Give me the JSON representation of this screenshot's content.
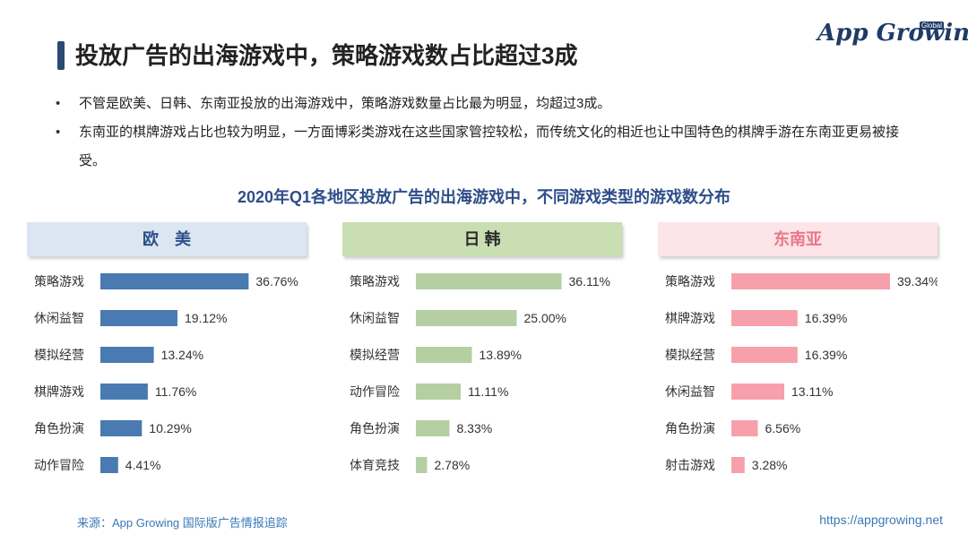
{
  "page": {
    "title": "投放广告的出海游戏中，策略游戏数占比超过3成",
    "logo_text": "App Growing",
    "logo_badge": "Global",
    "bullets": [
      "不管是欧美、日韩、东南亚投放的出海游戏中，策略游戏数量占比最为明显，均超过3成。",
      "东南亚的棋牌游戏占比也较为明显，一方面博彩类游戏在这些国家管控较松，而传统文化的相近也让中国特色的棋牌手游在东南亚更易被接受。"
    ],
    "chart_title": "2020年Q1各地区投放广告的出海游戏中，不同游戏类型的游戏数分布",
    "source": "来源：App Growing 国际版广告情报追踪",
    "url": "https://appgrowing.net"
  },
  "chart_data": [
    {
      "type": "bar",
      "orientation": "horizontal",
      "title": "欧　美",
      "header_bg": "#dce6f2",
      "header_color": "#2e4e8a",
      "bar_color": "#4a7ab2",
      "categories": [
        "策略游戏",
        "休闲益智",
        "模拟经营",
        "棋牌游戏",
        "角色扮演",
        "动作冒险"
      ],
      "values": [
        36.76,
        19.12,
        13.24,
        11.76,
        10.29,
        4.41
      ],
      "labels": [
        "36.76%",
        "19.12%",
        "13.24%",
        "11.76%",
        "10.29%",
        "4.41%"
      ],
      "xlim": [
        0,
        40
      ]
    },
    {
      "type": "bar",
      "orientation": "horizontal",
      "title": "日 韩",
      "header_bg": "#c9dfb3",
      "header_color": "#2a2a2a",
      "bar_color": "#b5cfa3",
      "categories": [
        "策略游戏",
        "休闲益智",
        "模拟经营",
        "动作冒险",
        "角色扮演",
        "体育竞技"
      ],
      "values": [
        36.11,
        25.0,
        13.89,
        11.11,
        8.33,
        2.78
      ],
      "labels": [
        "36.11%",
        "25.00%",
        "13.89%",
        "11.11%",
        "8.33%",
        "2.78%"
      ],
      "xlim": [
        0,
        40
      ]
    },
    {
      "type": "bar",
      "orientation": "horizontal",
      "title": "东南亚",
      "header_bg": "#fce4e8",
      "header_color": "#e8788a",
      "bar_color": "#f7a0ac",
      "categories": [
        "策略游戏",
        "棋牌游戏",
        "模拟经营",
        "休闲益智",
        "角色扮演",
        "射击游戏"
      ],
      "values": [
        39.34,
        16.39,
        16.39,
        13.11,
        6.56,
        3.28
      ],
      "labels": [
        "39.34%",
        "16.39%",
        "16.39%",
        "13.11%",
        "6.56%",
        "3.28%"
      ],
      "xlim": [
        0,
        40
      ]
    }
  ]
}
